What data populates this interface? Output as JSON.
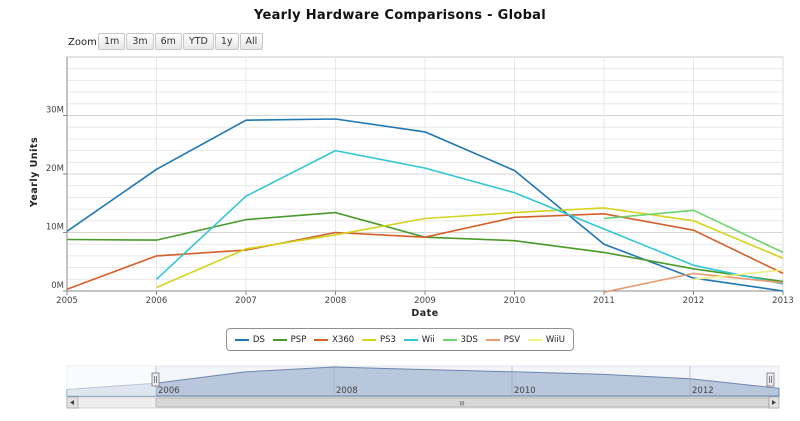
{
  "chart_data": {
    "type": "line",
    "title": "Yearly Hardware Comparisons - Global",
    "xlabel": "Date",
    "ylabel": "Yearly Units",
    "x": [
      2005,
      2006,
      2007,
      2008,
      2009,
      2010,
      2011,
      2012,
      2013
    ],
    "xlim": [
      2005,
      2013
    ],
    "ylim": [
      0,
      40
    ],
    "y_unit": "M",
    "y_ticks": [
      "0M",
      "10M",
      "20M",
      "30M"
    ],
    "x_ticks": [
      "2005",
      "2006",
      "2007",
      "2008",
      "2009",
      "2010",
      "2011",
      "2012",
      "2013"
    ],
    "grid": true,
    "legend_position": "bottom-center",
    "series": [
      {
        "name": "DS",
        "color": "#1f77b4",
        "values": [
          10.2,
          20.8,
          29.2,
          29.4,
          27.2,
          20.6,
          8.0,
          2.2,
          0.0
        ]
      },
      {
        "name": "PSP",
        "color": "#4a9a2a",
        "values": [
          8.8,
          8.7,
          12.2,
          13.4,
          9.2,
          8.6,
          6.6,
          3.8,
          1.6
        ]
      },
      {
        "name": "X360",
        "color": "#d65f2a",
        "values": [
          0.3,
          6.0,
          7.0,
          10.0,
          9.2,
          12.6,
          13.2,
          10.4,
          3.0
        ]
      },
      {
        "name": "PS3",
        "color": "#d4d420",
        "values": [
          null,
          0.6,
          7.2,
          9.6,
          12.4,
          13.4,
          14.2,
          12.0,
          5.6
        ]
      },
      {
        "name": "Wii",
        "color": "#33c6d6",
        "values": [
          null,
          2.0,
          16.2,
          24.0,
          21.0,
          16.8,
          10.6,
          4.4,
          1.2
        ]
      },
      {
        "name": "3DS",
        "color": "#6dd46d",
        "values": [
          null,
          null,
          null,
          null,
          null,
          null,
          12.4,
          13.8,
          6.6
        ]
      },
      {
        "name": "PSV",
        "color": "#e89a70",
        "values": [
          null,
          null,
          null,
          null,
          null,
          null,
          -0.2,
          3.0,
          1.4
        ]
      },
      {
        "name": "WiiU",
        "color": "#f0f080",
        "values": [
          null,
          null,
          null,
          null,
          null,
          null,
          null,
          2.0,
          3.6
        ]
      }
    ]
  },
  "zoom": {
    "label": "Zoom",
    "buttons": [
      "1m",
      "3m",
      "6m",
      "YTD",
      "1y",
      "All"
    ]
  },
  "navigator": {
    "ticks": [
      "2006",
      "2008",
      "2010",
      "2012"
    ],
    "scroll_grip": "III"
  }
}
